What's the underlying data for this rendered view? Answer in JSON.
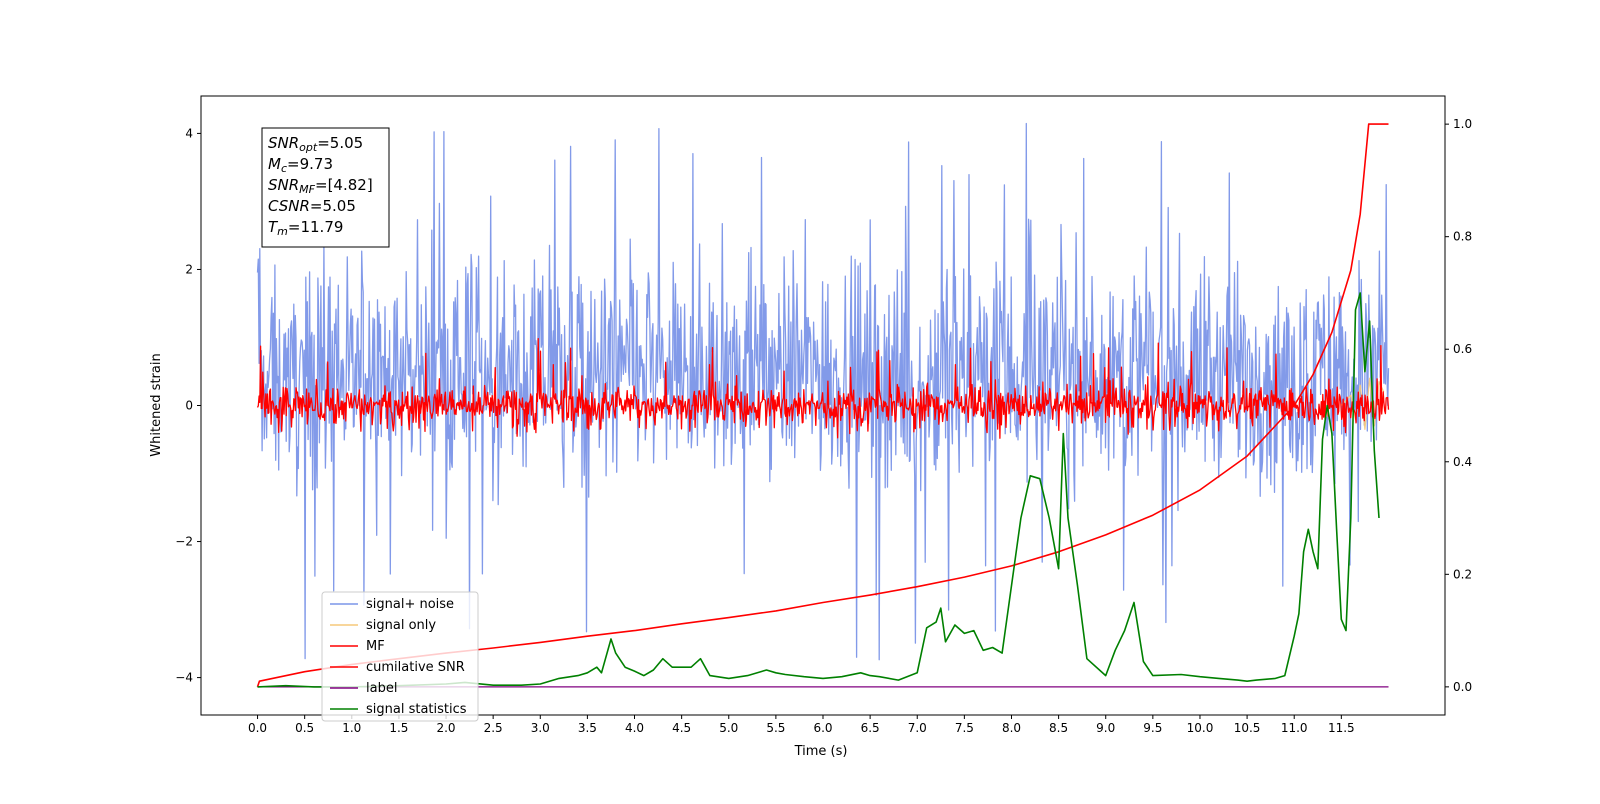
{
  "chart_data": {
    "type": "line",
    "xlabel": "Time (s)",
    "ylabel": "Whitened strain",
    "xlim": [
      -0.6,
      12.6
    ],
    "ylim": [
      -4.55,
      4.55
    ],
    "y2lim": [
      -0.05,
      1.05
    ],
    "x_ticks": [
      0.0,
      0.5,
      1.0,
      1.5,
      2.0,
      2.5,
      3.0,
      3.5,
      4.0,
      4.5,
      5.0,
      5.5,
      6.0,
      6.5,
      7.0,
      7.5,
      8.0,
      8.5,
      9.0,
      9.5,
      10.0,
      10.5,
      11.0,
      11.5
    ],
    "y_ticks": [
      -4,
      -2,
      0,
      2,
      4
    ],
    "y2_ticks": [
      0.0,
      0.2,
      0.4,
      0.6,
      0.8,
      1.0
    ],
    "annotation": {
      "lines": [
        {
          "var": "SNR",
          "sub": "opt",
          "value": "=5.05"
        },
        {
          "var": "M",
          "sub": "c",
          "value": "=9.73"
        },
        {
          "var": "SNR",
          "sub": "MF",
          "value": "=[4.82]"
        },
        {
          "var": "CSNR",
          "sub": "",
          "value": "=5.05"
        },
        {
          "var": "T",
          "sub": "m",
          "value": "=11.79"
        }
      ]
    },
    "series": [
      {
        "name": "signal+ noise",
        "color": "#7b95e8",
        "axis": "left",
        "kind": "noise_band",
        "x_range": [
          0.0,
          12.0
        ],
        "center": 0.5,
        "typical_range": [
          -2.2,
          2.6
        ],
        "extreme_range": [
          -3.75,
          4.15
        ]
      },
      {
        "name": "signal only",
        "color": "#f5c87a",
        "axis": "left",
        "x": [
          11.5,
          11.6,
          11.65,
          11.7,
          11.75,
          11.8,
          11.85,
          11.9,
          11.95
        ],
        "y": [
          0.0,
          0.15,
          -0.2,
          0.3,
          -0.35,
          0.4,
          -0.3,
          0.35,
          0.2
        ]
      },
      {
        "name": "MF",
        "color": "#ff0000",
        "axis": "left",
        "kind": "noise_band",
        "x_range": [
          0.0,
          12.0
        ],
        "center": 0.0,
        "typical_range": [
          -0.3,
          0.55
        ],
        "extreme_range": [
          -0.4,
          1.0
        ]
      },
      {
        "name": "cumilative SNR",
        "color": "#ff0000",
        "axis": "right",
        "x": [
          0.0,
          0.02,
          0.5,
          1.0,
          1.5,
          2.0,
          2.5,
          3.0,
          3.5,
          4.0,
          4.5,
          5.0,
          5.5,
          6.0,
          6.5,
          7.0,
          7.5,
          8.0,
          8.5,
          9.0,
          9.5,
          10.0,
          10.5,
          11.0,
          11.2,
          11.4,
          11.6,
          11.7,
          11.79,
          12.0
        ],
        "y": [
          0.0,
          0.01,
          0.027,
          0.04,
          0.05,
          0.06,
          0.069,
          0.079,
          0.09,
          0.1,
          0.112,
          0.123,
          0.135,
          0.15,
          0.163,
          0.178,
          0.195,
          0.215,
          0.24,
          0.27,
          0.305,
          0.35,
          0.41,
          0.5,
          0.555,
          0.63,
          0.74,
          0.84,
          1.0,
          1.0
        ]
      },
      {
        "name": "label",
        "color": "#800080",
        "axis": "right",
        "x": [
          0.0,
          12.0
        ],
        "y": [
          0.0,
          0.0
        ]
      },
      {
        "name": "signal statistics",
        "color": "#008000",
        "axis": "right",
        "x": [
          0.0,
          0.3,
          0.6,
          1.0,
          1.5,
          2.0,
          2.2,
          2.5,
          2.8,
          3.0,
          3.2,
          3.4,
          3.5,
          3.6,
          3.65,
          3.75,
          3.8,
          3.9,
          4.0,
          4.1,
          4.2,
          4.3,
          4.4,
          4.5,
          4.6,
          4.7,
          4.8,
          5.0,
          5.2,
          5.4,
          5.5,
          5.6,
          5.8,
          6.0,
          6.2,
          6.4,
          6.5,
          6.6,
          6.8,
          7.0,
          7.1,
          7.2,
          7.25,
          7.3,
          7.4,
          7.5,
          7.6,
          7.7,
          7.8,
          7.9,
          8.0,
          8.1,
          8.2,
          8.3,
          8.4,
          8.5,
          8.55,
          8.6,
          8.7,
          8.8,
          9.0,
          9.1,
          9.2,
          9.3,
          9.4,
          9.5,
          9.8,
          10.0,
          10.2,
          10.4,
          10.5,
          10.6,
          10.8,
          10.9,
          11.0,
          11.05,
          11.1,
          11.15,
          11.2,
          11.25,
          11.3,
          11.35,
          11.4,
          11.45,
          11.5,
          11.55,
          11.6,
          11.65,
          11.7,
          11.75,
          11.8,
          11.85,
          11.9
        ],
        "y": [
          0.0,
          0.002,
          0.0,
          0.0,
          0.002,
          0.005,
          0.008,
          0.003,
          0.003,
          0.005,
          0.015,
          0.02,
          0.025,
          0.035,
          0.025,
          0.085,
          0.06,
          0.035,
          0.028,
          0.02,
          0.03,
          0.05,
          0.035,
          0.035,
          0.035,
          0.05,
          0.02,
          0.015,
          0.02,
          0.03,
          0.025,
          0.022,
          0.018,
          0.015,
          0.018,
          0.025,
          0.02,
          0.018,
          0.012,
          0.025,
          0.105,
          0.115,
          0.14,
          0.08,
          0.11,
          0.095,
          0.1,
          0.065,
          0.07,
          0.06,
          0.18,
          0.3,
          0.375,
          0.37,
          0.3,
          0.21,
          0.45,
          0.3,
          0.18,
          0.05,
          0.02,
          0.065,
          0.1,
          0.15,
          0.045,
          0.02,
          0.022,
          0.018,
          0.015,
          0.012,
          0.01,
          0.012,
          0.015,
          0.02,
          0.09,
          0.13,
          0.24,
          0.28,
          0.24,
          0.21,
          0.44,
          0.5,
          0.45,
          0.28,
          0.12,
          0.1,
          0.3,
          0.67,
          0.7,
          0.56,
          0.65,
          0.42,
          0.3
        ]
      }
    ],
    "legend": {
      "position": "lower-left",
      "entries": [
        "signal+ noise",
        "signal only",
        "MF",
        "cumilative SNR",
        "label",
        "signal statistics"
      ]
    }
  }
}
